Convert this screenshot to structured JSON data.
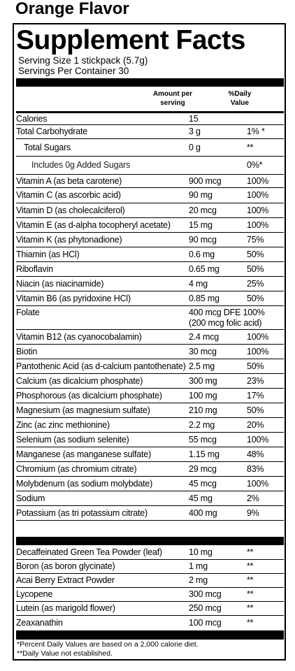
{
  "flavor": "Orange Flavor",
  "title": "Supplement Facts",
  "serving_size": "Serving Size 1 stickpack (5.7g)",
  "servings_per_container": "Servings Per Container 30",
  "columns": {
    "amount": "Amount per serving",
    "daily_value": "%Daily Value"
  },
  "nutrients": [
    {
      "name": "Calories",
      "amount": "15",
      "dv": ""
    },
    {
      "name": "Total Carbohydrate",
      "amount": "3 g",
      "dv": "1% *"
    },
    {
      "name": "Total Sugars",
      "amount": "0 g",
      "dv": "**"
    },
    {
      "name": "Includes 0g Added Sugars",
      "amount": "",
      "dv": "0%*"
    },
    {
      "name": "Vitamin A (as beta carotene)",
      "amount": "900 mcg",
      "dv": "100%"
    },
    {
      "name": "Vitamin C (as ascorbic acid)",
      "amount": "90 mg",
      "dv": "100%"
    },
    {
      "name": "Vitamin D (as cholecalciferol)",
      "amount": "20 mcg",
      "dv": "100%"
    },
    {
      "name": "Vitamin E (as d-alpha tocopheryl acetate)",
      "amount": "15 mg",
      "dv": "100%"
    },
    {
      "name": "Vitamin K (as phytonadione)",
      "amount": "90 mcg",
      "dv": "75%"
    },
    {
      "name": "Thiamin (as HCl)",
      "amount": "0.6 mg",
      "dv": "50%"
    },
    {
      "name": "Riboflavin",
      "amount": "0.65 mg",
      "dv": "50%"
    },
    {
      "name": "Niacin (as niacinamide)",
      "amount": "4 mg",
      "dv": "25%"
    },
    {
      "name": "Vitamin B6 (as pyridoxine HCl)",
      "amount": "0.85 mg",
      "dv": "50%"
    },
    {
      "name": "Folate",
      "amount": "400 mcg DFE 100%",
      "amount_line2": "(200 mcg folic acid)",
      "dv": ""
    },
    {
      "name": "Vitamin B12 (as cyanocobalamin)",
      "amount": "2.4 mcg",
      "dv": "100%"
    },
    {
      "name": "Biotin",
      "amount": "30 mcg",
      "dv": "100%"
    },
    {
      "name": "Pantothenic Acid (as d-calcium pantothenate)",
      "amount": "2.5 mg",
      "dv": "50%"
    },
    {
      "name": "Calcium (as dicalcium phosphate)",
      "amount": "300 mg",
      "dv": "23%"
    },
    {
      "name": "Phosphorous (as dicalcium phosphate)",
      "amount": "100 mg",
      "dv": "17%"
    },
    {
      "name": "Magnesium (as magnesium sulfate)",
      "amount": "210 mg",
      "dv": "50%"
    },
    {
      "name": "Zinc (ac zinc methionine)",
      "amount": "2.2 mg",
      "dv": "20%"
    },
    {
      "name": "Selenium (as sodium selenite)",
      "amount": "55 mcg",
      "dv": "100%"
    },
    {
      "name": "Manganese (as manganese sulfate)",
      "amount": "1.15 mg",
      "dv": "48%"
    },
    {
      "name": "Chromium (as chromium citrate)",
      "amount": "29 mcg",
      "dv": "83%"
    },
    {
      "name": "Molybdenum (as sodium molybdate)",
      "amount": "45 mcg",
      "dv": "100%"
    },
    {
      "name": "Sodium",
      "amount": "45 mg",
      "dv": "2%"
    },
    {
      "name": "Potassium (as tri potassium citrate)",
      "amount": "400 mg",
      "dv": "9%"
    }
  ],
  "other_ingredients": [
    {
      "name": "Decaffeinated Green Tea Powder (leaf)",
      "amount": "10 mg",
      "dv": "**"
    },
    {
      "name": "Boron (as boron glycinate)",
      "amount": "1 mg",
      "dv": "**"
    },
    {
      "name": "Acai Berry Extract Powder",
      "amount": "2 mg",
      "dv": "**"
    },
    {
      "name": "Lycopene",
      "amount": "300 mcg",
      "dv": "**"
    },
    {
      "name": "Lutein (as marigold flower)",
      "amount": "250 mcg",
      "dv": "**"
    },
    {
      "name": "Zeaxanathin",
      "amount": "100 mcg",
      "dv": "**"
    }
  ],
  "footnotes": [
    "*Percent Daily Values are based on a 2,000 calorie diet.",
    "**Daily Value not established."
  ]
}
